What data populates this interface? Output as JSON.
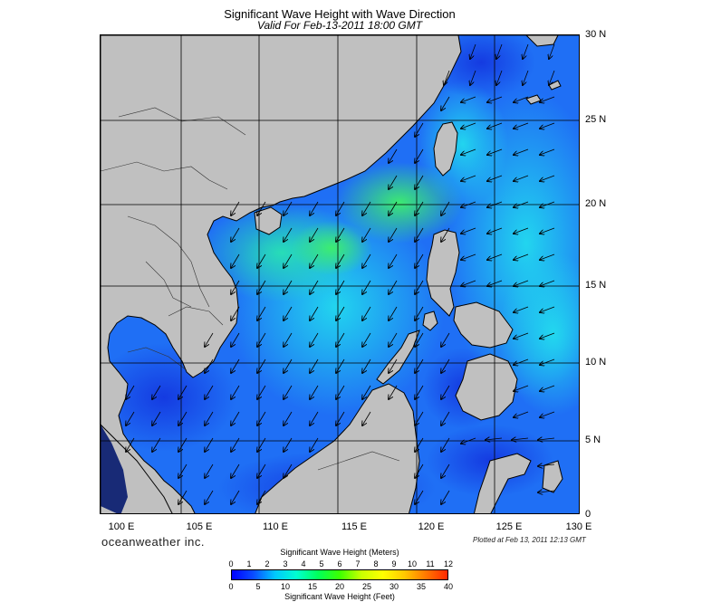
{
  "header": {
    "title": "Significant Wave Height with Wave Direction",
    "subtitle": "Valid For Feb-13-2011 18:00 GMT"
  },
  "map": {
    "lon_range": [
      100,
      130
    ],
    "lat_range": [
      0,
      30
    ],
    "lat_labels": [
      "30 N",
      "25 N",
      "20 N",
      "15 N",
      "10 N",
      "5 N",
      "0"
    ],
    "lon_labels": [
      "100 E",
      "105 E",
      "110 E",
      "115 E",
      "120 E",
      "125 E",
      "130 E"
    ],
    "arrow_direction": "northeasterly flow (arrows toward southwest)",
    "colors": {
      "land": "#c0c0c0",
      "deep_blue": "#1a3fe8",
      "blue": "#1f6ff5",
      "light_blue": "#22a6f2",
      "cyan": "#22d8f0",
      "teal_green": "#28e6a8",
      "green": "#3ef06a"
    }
  },
  "footer": {
    "brand": "oceanweather inc.",
    "plotted": "Plotted at Feb 13, 2011 12:13 GMT"
  },
  "legend": {
    "title_top": "Significant Wave Height (Meters)",
    "ticks_meters": [
      "0",
      "1",
      "2",
      "3",
      "4",
      "5",
      "6",
      "7",
      "8",
      "9",
      "10",
      "11",
      "12"
    ],
    "ticks_feet": [
      "0",
      "5",
      "10",
      "15",
      "20",
      "25",
      "30",
      "35",
      "40"
    ],
    "title_bottom": "Significant Wave Height (Feet)",
    "gradient_colors": [
      "#0000ff",
      "#0a4cff",
      "#00c8ff",
      "#00ffd0",
      "#00ff5a",
      "#3cff00",
      "#c8ff00",
      "#ffff00",
      "#ffc800",
      "#ff7800",
      "#ff2800"
    ]
  }
}
